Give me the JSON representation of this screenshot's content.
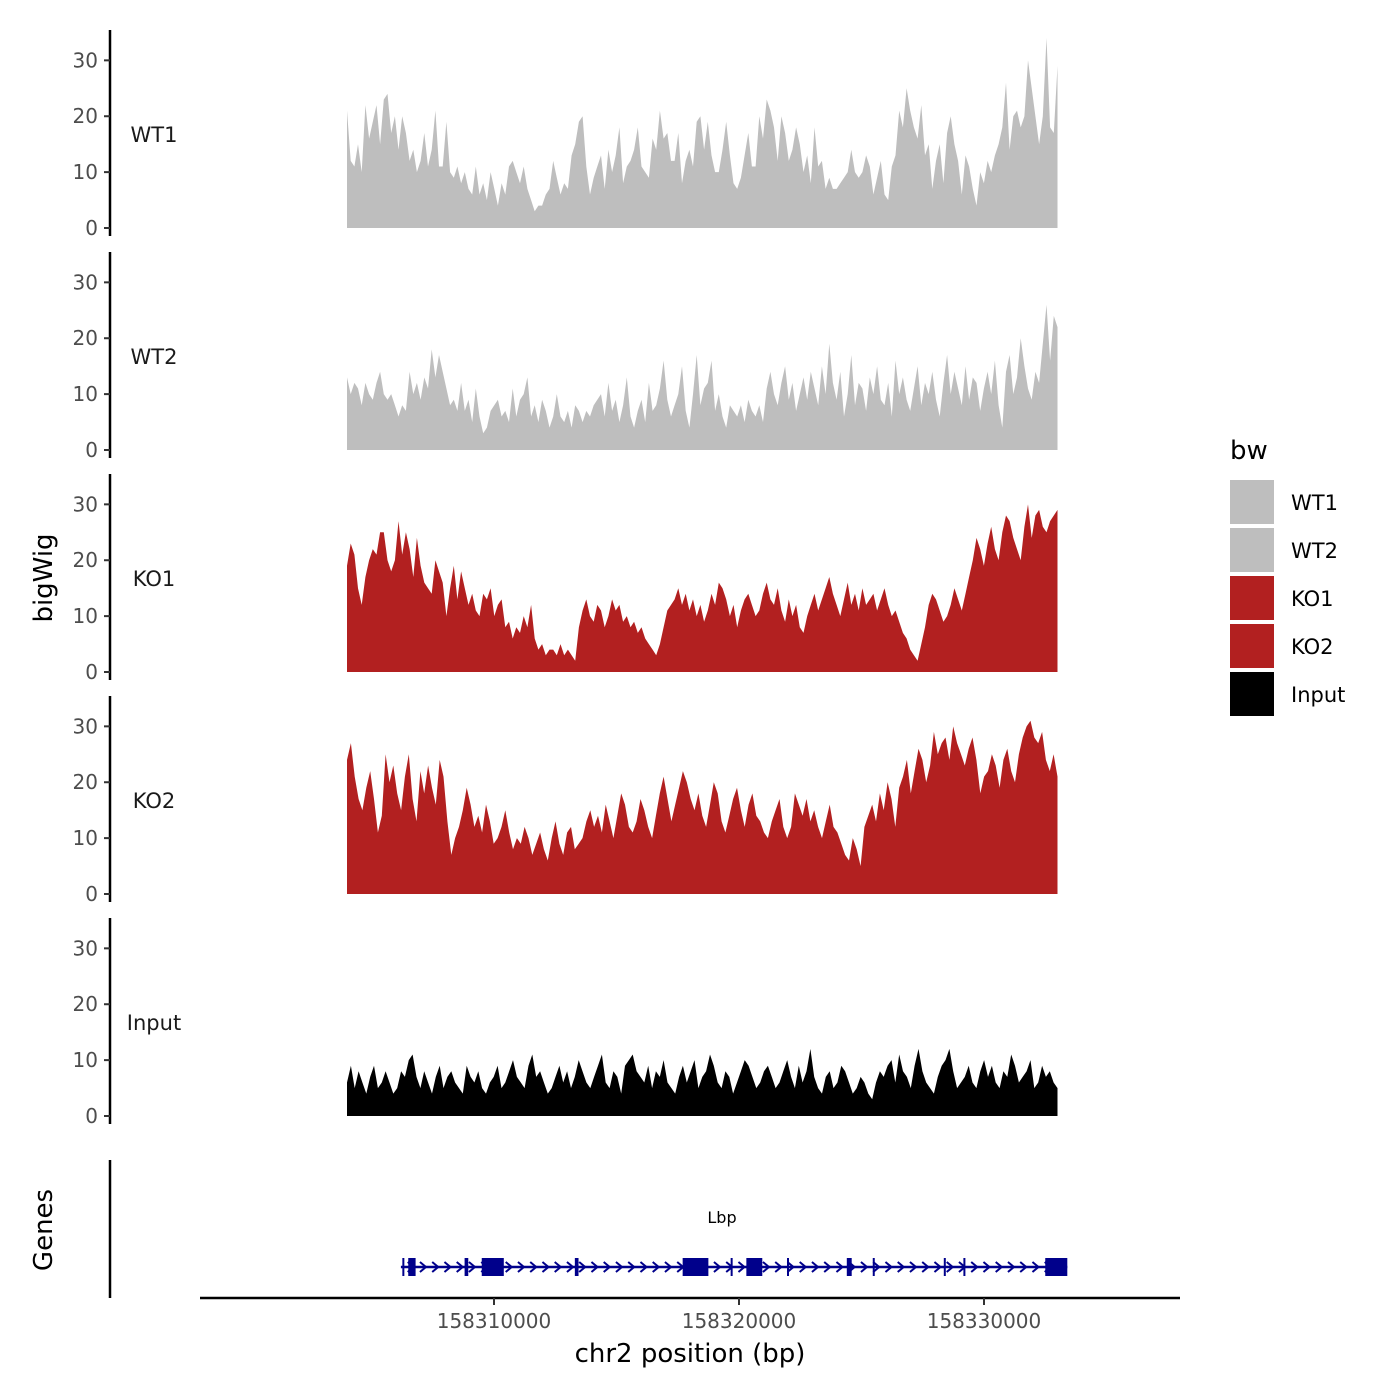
{
  "chart_data": {
    "type": "area",
    "ylabel": "bigWig",
    "xlabel": "chr2 position (bp)",
    "xlim": [
      158298000,
      158338000
    ],
    "data_x_range": [
      158304000,
      158333000
    ],
    "ylim": [
      0,
      34
    ],
    "yticks": [
      0,
      10,
      20,
      30
    ],
    "ytick_labels": [
      "0",
      "10",
      "20",
      "30"
    ],
    "xticks": [
      158310000,
      158320000,
      158330000
    ],
    "xtick_labels": [
      "158310000",
      "158320000",
      "158330000"
    ],
    "legend": {
      "title": "bw",
      "position": "right",
      "entries": [
        {
          "label": "WT1",
          "color": "#bebebe"
        },
        {
          "label": "WT2",
          "color": "#bebebe"
        },
        {
          "label": "KO1",
          "color": "#b22020"
        },
        {
          "label": "KO2",
          "color": "#b22020"
        },
        {
          "label": "Input",
          "color": "#000000"
        }
      ]
    },
    "series": [
      {
        "name": "WT1",
        "color": "#bebebe",
        "values": [
          21,
          12,
          11,
          15,
          10,
          22,
          16,
          19,
          22,
          15,
          23,
          24,
          17,
          20,
          14,
          20,
          17,
          12,
          14,
          10,
          12,
          17,
          11,
          14,
          21,
          11,
          11,
          19,
          10,
          9,
          11,
          8,
          10,
          7,
          6,
          11,
          6,
          8,
          5,
          10,
          7,
          4,
          8,
          6,
          11,
          12,
          10,
          8,
          11,
          7,
          5,
          3,
          4,
          4,
          6,
          7,
          12,
          9,
          6,
          8,
          7,
          13,
          15,
          19,
          20,
          11,
          6,
          9,
          11,
          13,
          7,
          14,
          10,
          13,
          18,
          8,
          11,
          12,
          14,
          18,
          11,
          10,
          9,
          16,
          14,
          21,
          16,
          17,
          12,
          12,
          17,
          8,
          12,
          14,
          11,
          19,
          20,
          14,
          19,
          13,
          10,
          10,
          14,
          19,
          13,
          8,
          7,
          9,
          13,
          17,
          11,
          11,
          20,
          16,
          23,
          21,
          18,
          12,
          20,
          17,
          12,
          14,
          18,
          15,
          10,
          13,
          8,
          18,
          11,
          12,
          7,
          9,
          7,
          7,
          8,
          9,
          10,
          14,
          10,
          9,
          10,
          13,
          11,
          6,
          9,
          12,
          6,
          5,
          11,
          13,
          21,
          18,
          25,
          21,
          18,
          16,
          22,
          13,
          15,
          7,
          12,
          15,
          8,
          17,
          20,
          15,
          12,
          6,
          13,
          11,
          7,
          4,
          10,
          8,
          12,
          10,
          13,
          15,
          18,
          26,
          14,
          20,
          21,
          18,
          20,
          30,
          25,
          20,
          15,
          20,
          34,
          18,
          17,
          29
        ]
      },
      {
        "name": "WT2",
        "color": "#bebebe",
        "values": [
          13,
          10,
          12,
          11,
          8,
          12,
          10,
          9,
          12,
          14,
          10,
          9,
          10,
          8,
          6,
          8,
          7,
          14,
          10,
          12,
          9,
          13,
          11,
          18,
          13,
          17,
          14,
          11,
          8,
          9,
          7,
          12,
          7,
          9,
          5,
          11,
          6,
          3,
          4,
          7,
          8,
          9,
          6,
          7,
          5,
          11,
          6,
          9,
          10,
          13,
          6,
          8,
          5,
          9,
          7,
          4,
          6,
          10,
          6,
          5,
          7,
          4,
          8,
          7,
          5,
          7,
          6,
          8,
          9,
          10,
          6,
          12,
          7,
          9,
          5,
          8,
          13,
          6,
          4,
          7,
          9,
          5,
          12,
          7,
          8,
          11,
          16,
          9,
          6,
          8,
          10,
          15,
          7,
          4,
          10,
          17,
          8,
          11,
          12,
          16,
          7,
          10,
          6,
          4,
          8,
          7,
          6,
          8,
          5,
          9,
          7,
          6,
          8,
          5,
          11,
          14,
          10,
          8,
          12,
          15,
          9,
          12,
          7,
          10,
          13,
          9,
          14,
          11,
          8,
          15,
          10,
          19,
          12,
          9,
          14,
          6,
          10,
          17,
          8,
          12,
          11,
          7,
          13,
          10,
          15,
          9,
          8,
          12,
          6,
          16,
          10,
          13,
          9,
          7,
          11,
          15,
          8,
          12,
          10,
          14,
          9,
          6,
          12,
          17,
          10,
          14,
          11,
          8,
          15,
          9,
          13,
          12,
          7,
          11,
          14,
          10,
          16,
          8,
          4,
          14,
          17,
          10,
          13,
          20,
          15,
          11,
          9,
          14,
          12,
          19,
          26,
          16,
          24,
          22
        ]
      },
      {
        "name": "KO1",
        "color": "#b22020",
        "values": [
          19,
          23,
          21,
          15,
          12,
          17,
          20,
          22,
          21,
          25,
          25,
          20,
          18,
          20,
          27,
          21,
          25,
          22,
          17,
          24,
          19,
          16,
          15,
          14,
          20,
          18,
          16,
          10,
          15,
          19,
          13,
          18,
          15,
          12,
          14,
          11,
          10,
          14,
          13,
          15,
          10,
          12,
          13,
          8,
          9,
          6,
          8,
          7,
          10,
          8,
          12,
          6,
          4,
          5,
          3,
          4,
          4,
          3,
          5,
          3,
          4,
          3,
          2,
          8,
          11,
          13,
          10,
          9,
          12,
          11,
          8,
          10,
          13,
          11,
          12,
          9,
          10,
          8,
          9,
          7,
          8,
          6,
          5,
          4,
          3,
          5,
          8,
          11,
          12,
          13,
          15,
          12,
          14,
          11,
          13,
          10,
          12,
          9,
          11,
          14,
          12,
          16,
          15,
          13,
          10,
          12,
          8,
          11,
          13,
          14,
          12,
          10,
          11,
          14,
          16,
          13,
          12,
          15,
          11,
          9,
          13,
          10,
          12,
          8,
          7,
          10,
          12,
          14,
          11,
          13,
          15,
          17,
          14,
          12,
          10,
          13,
          16,
          12,
          14,
          11,
          15,
          12,
          13,
          14,
          11,
          13,
          15,
          12,
          10,
          11,
          9,
          7,
          6,
          4,
          3,
          2,
          5,
          8,
          12,
          14,
          13,
          11,
          9,
          10,
          12,
          15,
          13,
          11,
          14,
          17,
          20,
          24,
          22,
          19,
          23,
          26,
          22,
          20,
          25,
          28,
          27,
          24,
          22,
          20,
          26,
          30,
          24,
          28,
          29,
          26,
          25,
          27,
          28,
          29
        ]
      },
      {
        "name": "KO2",
        "color": "#b22020",
        "values": [
          24,
          27,
          21,
          17,
          15,
          19,
          22,
          17,
          11,
          14,
          25,
          20,
          23,
          18,
          15,
          21,
          25,
          17,
          13,
          22,
          18,
          23,
          19,
          16,
          24,
          21,
          13,
          7,
          10,
          12,
          15,
          19,
          16,
          12,
          14,
          11,
          16,
          13,
          9,
          10,
          12,
          15,
          11,
          8,
          10,
          9,
          12,
          10,
          7,
          9,
          11,
          8,
          6,
          10,
          13,
          9,
          7,
          11,
          12,
          8,
          9,
          10,
          13,
          15,
          12,
          14,
          11,
          16,
          13,
          10,
          14,
          18,
          16,
          12,
          11,
          13,
          17,
          15,
          12,
          10,
          14,
          18,
          21,
          17,
          13,
          16,
          19,
          22,
          20,
          17,
          15,
          18,
          14,
          12,
          16,
          20,
          18,
          13,
          11,
          14,
          17,
          19,
          15,
          12,
          16,
          18,
          14,
          13,
          11,
          10,
          13,
          15,
          17,
          12,
          10,
          12,
          18,
          16,
          14,
          17,
          13,
          15,
          12,
          10,
          13,
          16,
          12,
          11,
          9,
          7,
          6,
          10,
          8,
          5,
          12,
          14,
          16,
          13,
          18,
          15,
          20,
          17,
          12,
          19,
          21,
          24,
          18,
          22,
          26,
          24,
          20,
          23,
          29,
          25,
          27,
          28,
          24,
          30,
          27,
          25,
          23,
          26,
          28,
          24,
          18,
          21,
          22,
          25,
          23,
          19,
          24,
          26,
          22,
          20,
          25,
          28,
          30,
          31,
          28,
          27,
          29,
          24,
          22,
          25,
          21
        ]
      },
      {
        "name": "Input",
        "color": "#000000",
        "values": [
          6,
          9,
          5,
          8,
          6,
          4,
          7,
          9,
          5,
          6,
          8,
          6,
          4,
          5,
          8,
          7,
          10,
          11,
          7,
          5,
          8,
          6,
          4,
          7,
          9,
          5,
          7,
          8,
          6,
          5,
          4,
          9,
          7,
          6,
          8,
          5,
          4,
          6,
          7,
          9,
          5,
          6,
          8,
          10,
          7,
          6,
          5,
          9,
          11,
          7,
          8,
          6,
          4,
          5,
          7,
          9,
          6,
          8,
          5,
          7,
          10,
          8,
          6,
          5,
          7,
          9,
          11,
          6,
          5,
          8,
          7,
          4,
          9,
          10,
          11,
          8,
          7,
          6,
          9,
          5,
          8,
          7,
          10,
          6,
          5,
          4,
          7,
          9,
          6,
          8,
          10,
          5,
          7,
          8,
          11,
          9,
          6,
          5,
          8,
          7,
          4,
          6,
          8,
          10,
          9,
          7,
          5,
          6,
          8,
          9,
          7,
          5,
          6,
          8,
          10,
          7,
          5,
          9,
          6,
          8,
          12,
          7,
          5,
          4,
          7,
          8,
          5,
          6,
          9,
          8,
          6,
          4,
          5,
          7,
          6,
          4,
          3,
          6,
          8,
          7,
          9,
          10,
          6,
          11,
          8,
          7,
          5,
          9,
          12,
          8,
          6,
          5,
          4,
          7,
          9,
          10,
          12,
          8,
          5,
          6,
          7,
          9,
          6,
          5,
          8,
          10,
          7,
          9,
          6,
          5,
          8,
          7,
          11,
          9,
          6,
          7,
          8,
          10,
          5,
          6,
          9,
          7,
          8,
          6,
          5
        ]
      }
    ],
    "genes_track": {
      "ylabel": "Genes",
      "gene_name": "Lbp",
      "strand": "+",
      "span": [
        158306200,
        158333400
      ],
      "exons": [
        [
          158306500,
          158306800
        ],
        [
          158308800,
          158308950
        ],
        [
          158309500,
          158310400
        ],
        [
          158313300,
          158313450
        ],
        [
          158317700,
          158318750
        ],
        [
          158320300,
          158320950
        ],
        [
          158324400,
          158324600
        ],
        [
          158332500,
          158333400
        ]
      ],
      "small_marks": [
        158306300,
        158319700,
        158322000,
        158325500,
        158328400,
        158329200
      ]
    }
  }
}
